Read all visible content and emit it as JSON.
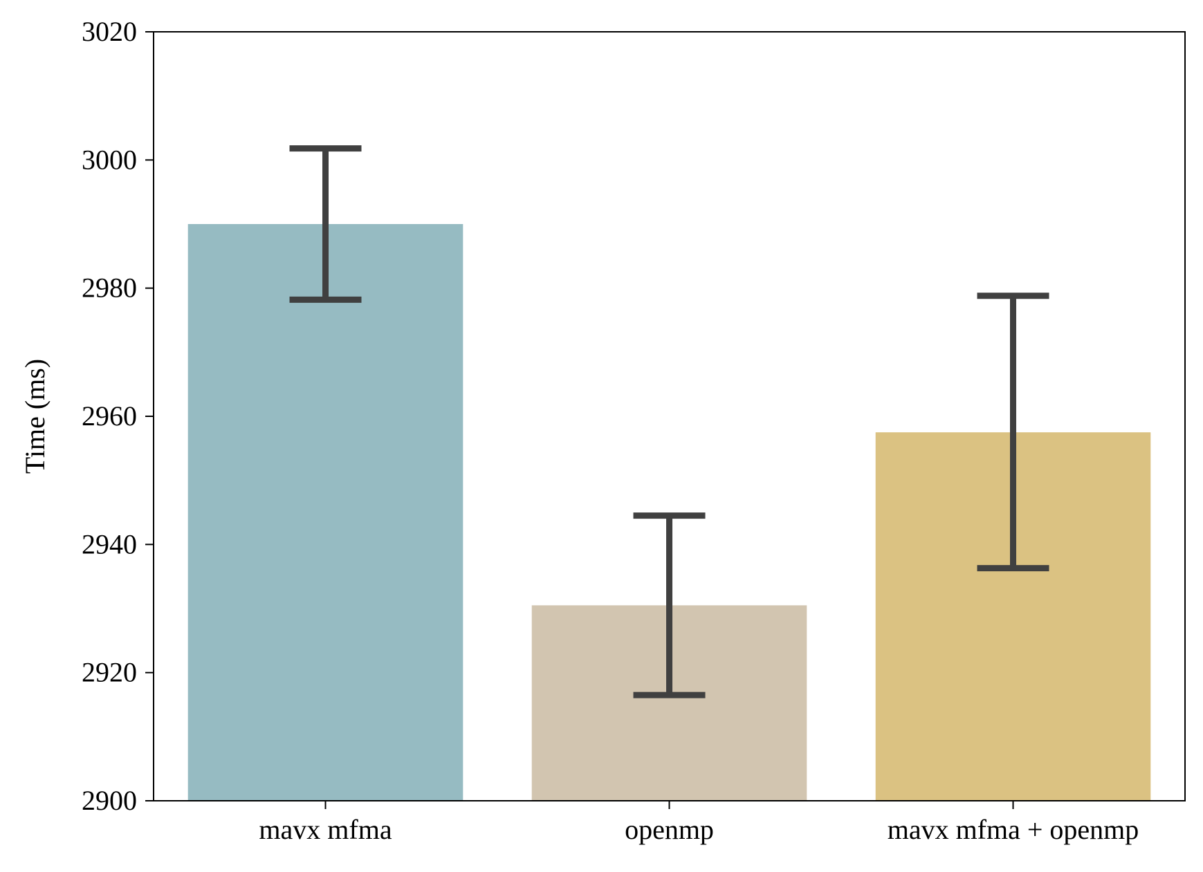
{
  "chart_data": {
    "type": "bar",
    "title": "",
    "xlabel": "",
    "ylabel": "Time (ms)",
    "ylim": [
      2900,
      3020
    ],
    "yticks": [
      2900,
      2920,
      2940,
      2960,
      2980,
      3000,
      3020
    ],
    "grid": false,
    "categories": [
      "mavx mfma",
      "openmp",
      "mavx mfma + openmp"
    ],
    "values": [
      2990,
      2930.5,
      2957.5
    ],
    "error_low": [
      2978.2,
      2916.5,
      2936.3
    ],
    "error_high": [
      3001.8,
      2944.5,
      2978.8
    ],
    "colors": [
      "#96bbc2",
      "#d2c5b0",
      "#dbc282"
    ],
    "errorbar_color": "#404040"
  }
}
